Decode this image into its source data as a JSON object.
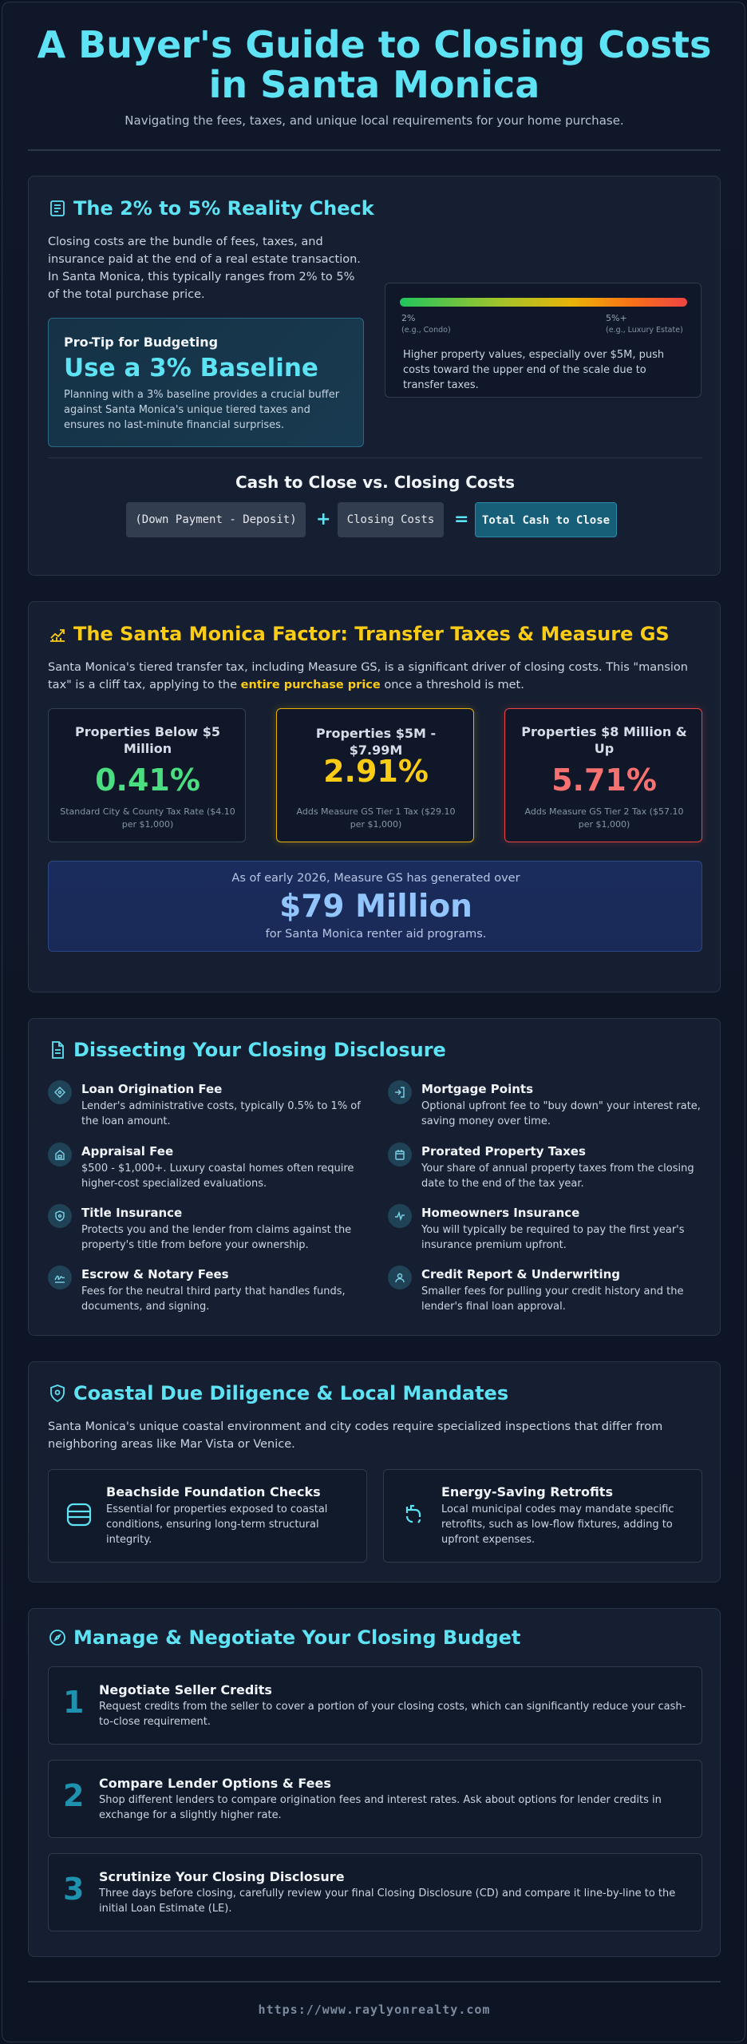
{
  "header": {
    "title_line1": "A Buyer's Guide to Closing Costs",
    "title_line2": "in Santa Monica",
    "subtitle": "Navigating the fees, taxes, and unique local requirements for your home purchase."
  },
  "reality": {
    "title": "The 2% to 5% Reality Check",
    "icon": "list-document-icon",
    "intro": "Closing costs are the bundle of fees, taxes, and insurance paid at the end of a real estate transaction. In Santa Monica, this typically ranges from 2% to 5% of the total purchase price.",
    "protip_label": "Pro-Tip for Budgeting",
    "protip_headline": "Use a 3% Baseline",
    "protip_text": "Planning with a 3% baseline provides a crucial buffer against Santa Monica's unique tiered taxes and ensures no last-minute financial surprises.",
    "scale_low": "2%",
    "scale_low_note": "(e.g., Condo)",
    "scale_high": "5%+",
    "scale_high_note": "(e.g., Luxury Estate)",
    "scale_text": "Higher property values, especially over $5M, push costs toward the upper end of the scale due to transfer taxes.",
    "ctc_title": "Cash to Close vs. Closing Costs",
    "ctc_term1": "(Down Payment - Deposit)",
    "ctc_plus": "+",
    "ctc_term2": "Closing Costs",
    "ctc_equals": "=",
    "ctc_result": "Total Cash to Close"
  },
  "factor": {
    "title": "The Santa Monica Factor: Transfer Taxes & Measure GS",
    "icon": "chart-trend-icon",
    "intro_before": "Santa Monica's tiered transfer tax, including Measure GS, is a significant driver of closing costs. This \"mansion tax\" is a cliff tax, applying to the ",
    "intro_highlight": "entire purchase price",
    "intro_after": " once a threshold is met.",
    "tiers": [
      {
        "head": "Properties Below $5 Million",
        "value": "0.41%",
        "note": "Standard City & County Tax Rate ($4.10 per $1,000)",
        "color": "#4ade80"
      },
      {
        "head": "Properties $5M - $7.99M",
        "value": "2.91%",
        "note": "Adds Measure GS Tier 1 Tax ($29.10 per $1,000)",
        "color": "#facc15"
      },
      {
        "head": "Properties $8 Million & Up",
        "value": "5.71%",
        "note": "Adds Measure GS Tier 2 Tax ($57.10 per $1,000)",
        "color": "#f87171"
      }
    ],
    "gs_line1": "As of early 2026, Measure GS has generated over",
    "gs_amount": "$79 Million",
    "gs_line2": "for Santa Monica renter aid programs."
  },
  "disclosure": {
    "title": "Dissecting Your Closing Disclosure",
    "icon": "document-text-icon",
    "fees": [
      {
        "name": "Loan Origination Fee",
        "desc": "Lender's administrative costs, typically 0.5% to 1% of the loan amount.",
        "icon": "tag-icon"
      },
      {
        "name": "Mortgage Points",
        "desc": "Optional upfront fee to \"buy down\" your interest rate, saving money over time.",
        "icon": "arrow-in-icon"
      },
      {
        "name": "Appraisal Fee",
        "desc": "$500 - $1,000+. Luxury coastal homes often require higher-cost specialized evaluations.",
        "icon": "home-lock-icon"
      },
      {
        "name": "Prorated Property Taxes",
        "desc": "Your share of annual property taxes from the closing date to the end of the tax year.",
        "icon": "calendar-icon"
      },
      {
        "name": "Title Insurance",
        "desc": "Protects you and the lender from claims against the property's title from before your ownership.",
        "icon": "shield-icon"
      },
      {
        "name": "Homeowners Insurance",
        "desc": "You will typically be required to pay the first year's insurance premium upfront.",
        "icon": "activity-icon"
      },
      {
        "name": "Escrow & Notary Fees",
        "desc": "Fees for the neutral third party that handles funds, documents, and signing.",
        "icon": "signature-icon"
      },
      {
        "name": "Credit Report & Underwriting",
        "desc": "Smaller fees for pulling your credit history and the lender's final loan approval.",
        "icon": "user-icon"
      }
    ]
  },
  "coastal": {
    "title": "Coastal Due Diligence & Local Mandates",
    "icon": "shield-check-icon",
    "intro": "Santa Monica's unique coastal environment and city codes require specialized inspections that differ from neighboring areas like Mar Vista or Venice.",
    "items": [
      {
        "name": "Beachside Foundation Checks",
        "desc": "Essential for properties exposed to coastal conditions, ensuring long-term structural integrity.",
        "icon": "foundation-layers-icon"
      },
      {
        "name": "Energy-Saving Retrofits",
        "desc": "Local municipal codes may mandate specific retrofits, such as low-flow fixtures, adding to upfront expenses.",
        "icon": "faucet-icon"
      }
    ]
  },
  "manage": {
    "title": "Manage & Negotiate Your Closing Budget",
    "icon": "compass-icon",
    "steps": [
      {
        "num": "1",
        "name": "Negotiate Seller Credits",
        "desc": "Request credits from the seller to cover a portion of your closing costs, which can significantly reduce your cash-to-close requirement."
      },
      {
        "num": "2",
        "name": "Compare Lender Options & Fees",
        "desc": "Shop different lenders to compare origination fees and interest rates. Ask about options for lender credits in exchange for a slightly higher rate."
      },
      {
        "num": "3",
        "name": "Scrutinize Your Closing Disclosure",
        "desc": "Three days before closing, carefully review your final Closing Disclosure (CD) and compare it line-by-line to the initial Loan Estimate (LE)."
      }
    ]
  },
  "footer": {
    "url": "https://www.raylyonrealty.com"
  }
}
